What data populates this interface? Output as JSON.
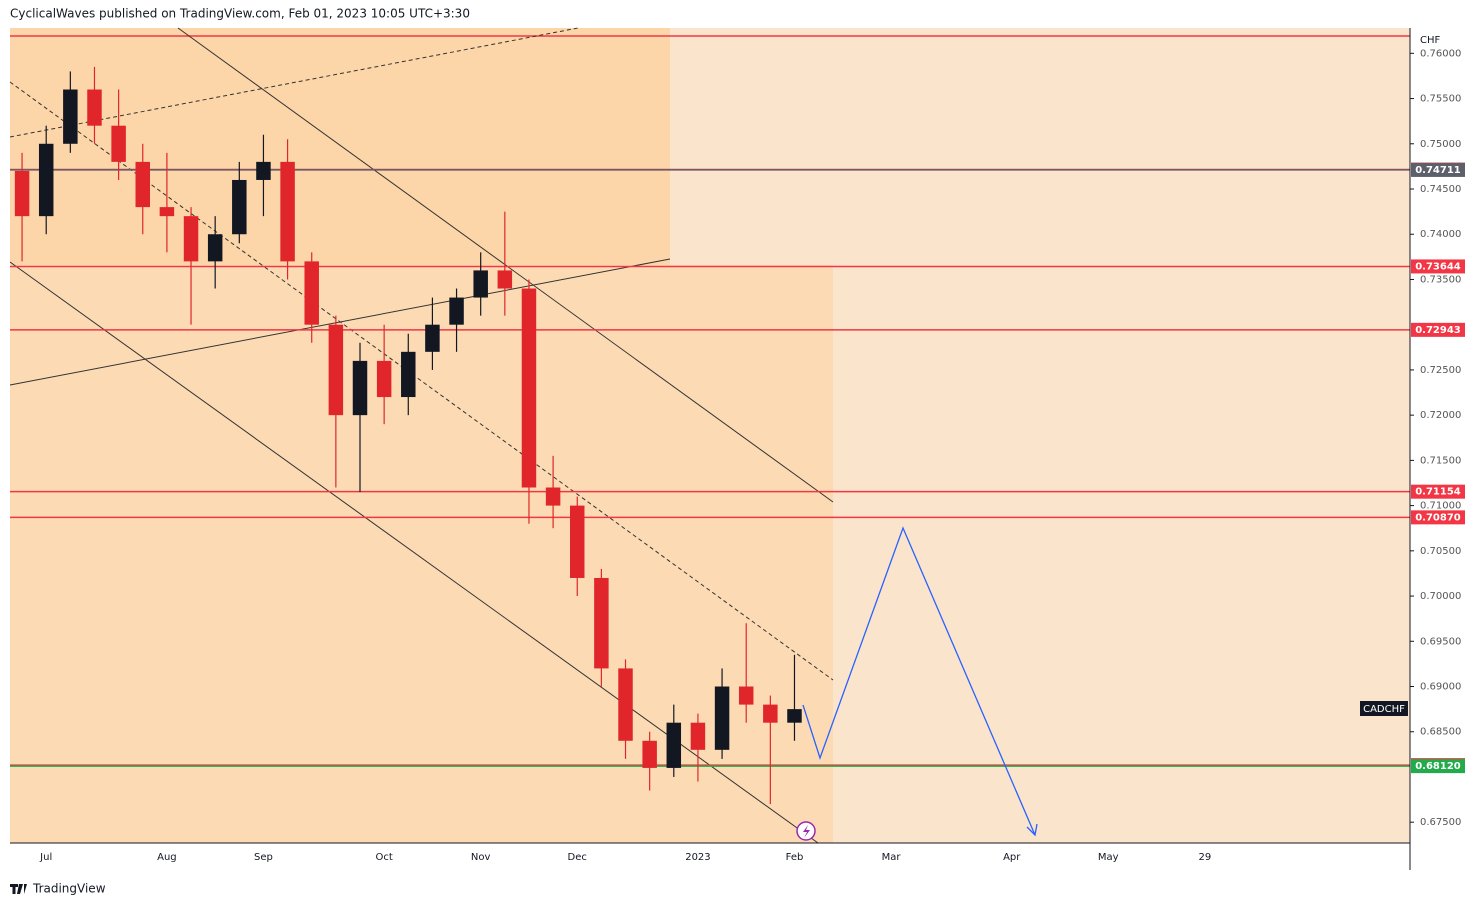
{
  "chart_data": {
    "type": "candlestick",
    "title": "CyclicalWaves published on TradingView.com, Feb 01, 2023 10:05 UTC+3:30",
    "symbol": "CADCHF",
    "currency": "CHF",
    "brand": "TradingView",
    "categories": [
      null,
      "Jul",
      null,
      null,
      null,
      null,
      "Aug",
      null,
      null,
      null,
      "Sep",
      null,
      null,
      null,
      null,
      "Oct",
      null,
      null,
      null,
      "Nov",
      null,
      null,
      null,
      "Dec",
      null,
      null,
      null,
      null,
      "2023",
      null,
      null,
      null,
      "Feb",
      null,
      null,
      null,
      "Mar",
      null,
      null,
      null,
      null,
      "Apr",
      null,
      null,
      null,
      "May",
      null,
      null,
      null,
      "29",
      null,
      null,
      null,
      null,
      null,
      null,
      null,
      null
    ],
    "open": [
      0.747,
      0.742,
      0.75,
      0.756,
      0.752,
      0.748,
      0.743,
      0.742,
      0.737,
      0.74,
      0.746,
      0.748,
      0.737,
      0.73,
      0.72,
      0.726,
      0.722,
      0.727,
      0.73,
      0.733,
      0.736,
      0.734,
      0.712,
      0.71,
      0.702,
      0.692,
      0.684,
      0.681,
      0.686,
      0.683,
      0.69,
      0.688,
      0.686,
      null,
      null,
      null,
      null,
      null,
      null,
      null,
      null,
      null,
      null,
      null,
      null,
      null,
      null,
      null,
      null,
      null,
      null,
      null,
      null,
      null,
      null,
      null,
      null,
      null
    ],
    "high": [
      0.749,
      0.752,
      0.758,
      0.7585,
      0.756,
      0.75,
      0.749,
      0.743,
      0.742,
      0.748,
      0.751,
      0.7505,
      0.738,
      0.731,
      0.728,
      0.73,
      0.729,
      0.733,
      0.734,
      0.738,
      0.7425,
      0.735,
      0.7155,
      0.711,
      0.703,
      0.693,
      0.685,
      0.688,
      0.687,
      0.692,
      0.697,
      0.689,
      0.6935,
      null,
      null,
      null,
      null,
      null,
      null,
      null,
      null,
      null,
      null,
      null,
      null,
      null,
      null,
      null,
      null,
      null,
      null,
      null,
      null,
      null,
      null,
      null,
      null,
      null
    ],
    "low": [
      0.737,
      0.74,
      0.749,
      0.75,
      0.746,
      0.74,
      0.738,
      0.73,
      0.734,
      0.739,
      0.742,
      0.735,
      0.728,
      0.712,
      0.7115,
      0.719,
      0.72,
      0.725,
      0.727,
      0.731,
      0.731,
      0.708,
      0.7075,
      0.7,
      0.69,
      0.682,
      0.6785,
      0.68,
      0.6795,
      0.682,
      0.686,
      0.677,
      0.684,
      null,
      null,
      null,
      null,
      null,
      null,
      null,
      null,
      null,
      null,
      null,
      null,
      null,
      null,
      null,
      null,
      null,
      null,
      null,
      null,
      null,
      null,
      null,
      null,
      null
    ],
    "close": [
      0.742,
      0.75,
      0.756,
      0.752,
      0.748,
      0.743,
      0.742,
      0.737,
      0.74,
      0.746,
      0.748,
      0.737,
      0.73,
      0.72,
      0.726,
      0.722,
      0.727,
      0.73,
      0.733,
      0.736,
      0.734,
      0.712,
      0.71,
      0.702,
      0.692,
      0.684,
      0.681,
      0.686,
      0.683,
      0.69,
      0.688,
      0.686,
      0.6875,
      null,
      null,
      null,
      null,
      null,
      null,
      null,
      null,
      null,
      null,
      null,
      null,
      null,
      null,
      null,
      null,
      null,
      null,
      null,
      null,
      null,
      null,
      null,
      null,
      null
    ],
    "up_color": "#131722",
    "down_color": "#e0262b",
    "ylim": [
      0.6727,
      0.7628
    ],
    "yticks": [
      {
        "value": 0.675,
        "label": "0.67500"
      },
      {
        "value": 0.685,
        "label": "0.68500"
      },
      {
        "value": 0.69,
        "label": "0.69000"
      },
      {
        "value": 0.695,
        "label": "0.69500"
      },
      {
        "value": 0.7,
        "label": "0.70000"
      },
      {
        "value": 0.705,
        "label": "0.70500"
      },
      {
        "value": 0.71,
        "label": "0.71000"
      },
      {
        "value": 0.715,
        "label": "0.71500"
      },
      {
        "value": 0.72,
        "label": "0.72000"
      },
      {
        "value": 0.725,
        "label": "0.72500"
      },
      {
        "value": 0.735,
        "label": "0.73500"
      },
      {
        "value": 0.74,
        "label": "0.74000"
      },
      {
        "value": 0.745,
        "label": "0.74500"
      },
      {
        "value": 0.75,
        "label": "0.75000"
      },
      {
        "value": 0.755,
        "label": "0.75500"
      },
      {
        "value": 0.76,
        "label": "0.76000"
      }
    ],
    "levels": [
      {
        "value": 0.74715,
        "label": "0.74715",
        "color": "#f23645"
      },
      {
        "value": 0.74711,
        "label": "0.74711",
        "color": "#5d606b"
      },
      {
        "value": 0.73644,
        "label": "0.73644",
        "color": "#f23645"
      },
      {
        "value": 0.72943,
        "label": "0.72943",
        "color": "#f23645"
      },
      {
        "value": 0.71154,
        "label": "0.71154",
        "color": "#f23645"
      },
      {
        "value": 0.7087,
        "label": "0.70870",
        "color": "#f23645"
      },
      {
        "value": 0.68131,
        "label": "0.68131",
        "color": "#f23645"
      },
      {
        "value": 0.6812,
        "label": "0.68120",
        "color": "#22ab4a"
      }
    ]
  }
}
